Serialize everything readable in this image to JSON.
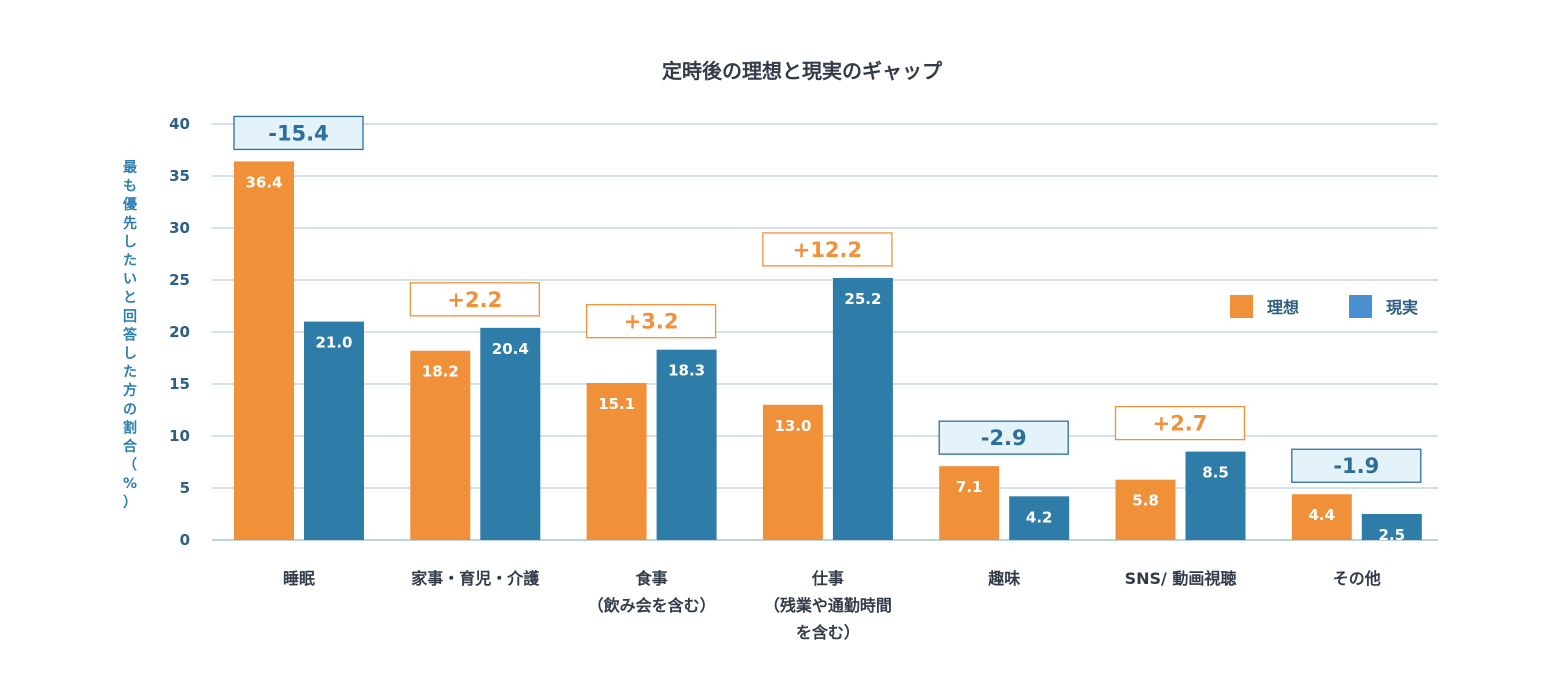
{
  "chart_data": {
    "type": "bar",
    "title": "定時後の理想と現実のギャップ",
    "ylabel_chars": [
      "最",
      "も",
      "優",
      "先",
      "し",
      "た",
      "い",
      "と",
      "回",
      "答",
      "し",
      "た",
      "方",
      "の",
      "割",
      "合",
      "（",
      "%",
      "）"
    ],
    "ylabel": "最も優先したいと回答した方の割合（%）",
    "ylim": [
      0,
      40
    ],
    "yticks": [
      0,
      5,
      10,
      15,
      20,
      25,
      30,
      35,
      40
    ],
    "grid": true,
    "legend_position": "right",
    "categories": [
      [
        "睡眠"
      ],
      [
        "家事・育児・介護"
      ],
      [
        "食事",
        "（飲み会を含む）"
      ],
      [
        "仕事",
        "（残業や通勤時間",
        "を含む）"
      ],
      [
        "趣味"
      ],
      [
        "SNS/ 動画視聴"
      ],
      [
        "その他"
      ]
    ],
    "series": [
      {
        "name": "理想",
        "color": "#f0913a",
        "values": [
          36.4,
          18.2,
          15.1,
          13.0,
          7.1,
          5.8,
          4.4
        ],
        "labels": [
          "36.4",
          "18.2",
          "15.1",
          "13.0",
          "7.1",
          "5.8",
          "4.4"
        ]
      },
      {
        "name": "現実",
        "color": "#2e7ca8",
        "values": [
          21.0,
          20.4,
          18.3,
          25.2,
          4.2,
          8.5,
          2.5
        ],
        "labels": [
          "21.0",
          "20.4",
          "18.3",
          "25.2",
          "4.2",
          "8.5",
          "2.5"
        ]
      }
    ],
    "differences": [
      "-15.4",
      "+2.2",
      "+3.2",
      "+12.2",
      "-2.9",
      "+2.7",
      "-1.9"
    ],
    "colors": {
      "positive_text": "#f0913a",
      "negative_text": "#2d6f9c",
      "negative_fill": "#e4f3fa",
      "grid": "#a9c3d6",
      "legend_ideal": "#f0913a",
      "legend_real": "#4a8fd0"
    }
  }
}
